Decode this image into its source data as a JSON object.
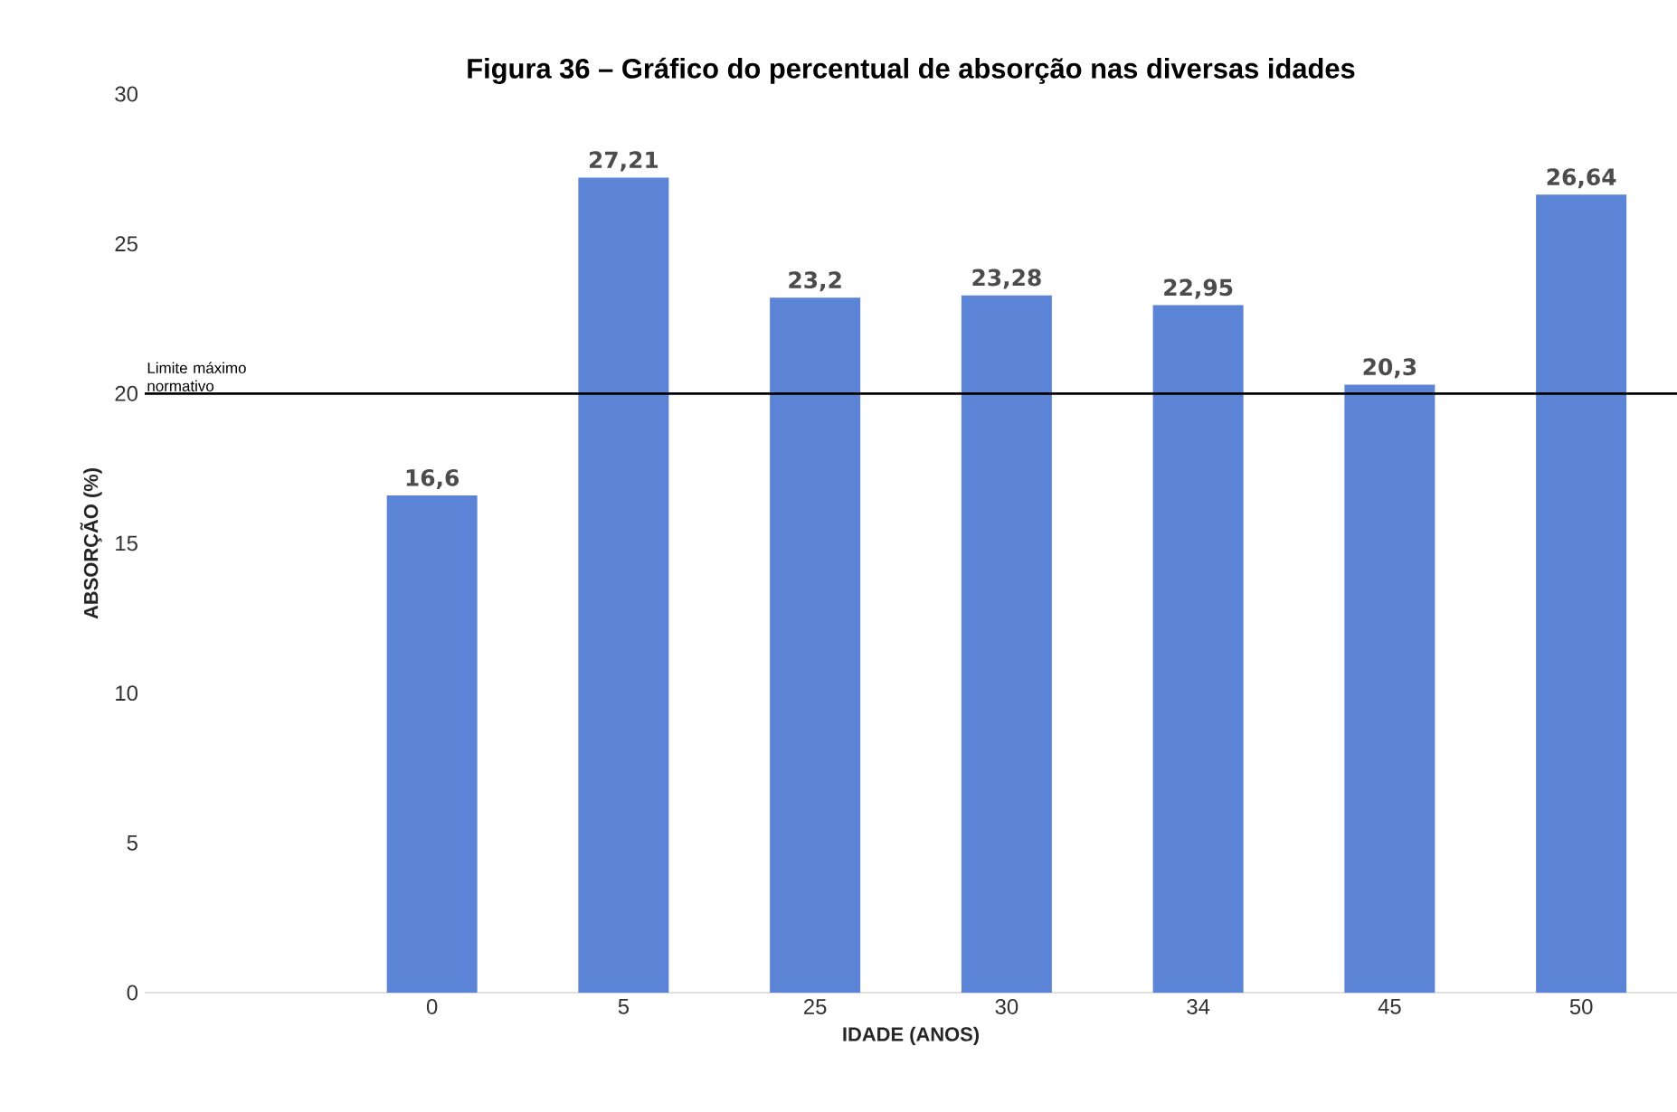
{
  "chart_data": {
    "type": "bar",
    "title": "Figura 36 – Gráfico do percentual de absorção nas diversas idades",
    "xlabel": "IDADE (ANOS)",
    "ylabel": "ABSORÇÃO (%)",
    "categories": [
      null,
      "0",
      "5",
      "25",
      "30",
      "34",
      "45",
      "50"
    ],
    "values": [
      null,
      16.6,
      27.21,
      23.2,
      23.28,
      22.95,
      20.3,
      26.64
    ],
    "color": "#5b84d6",
    "ylim": [
      0,
      30
    ],
    "yticks": [
      0,
      5,
      10,
      15,
      20,
      25,
      30
    ],
    "value_labels": [
      null,
      "16,6",
      "27,21",
      "23,2",
      "23,28",
      "22,95",
      "20,3",
      "26,64"
    ],
    "ref_lines": [
      {
        "axis": "y",
        "value": 20,
        "label": "Limite máximo normativo",
        "color": "#000000"
      }
    ]
  }
}
